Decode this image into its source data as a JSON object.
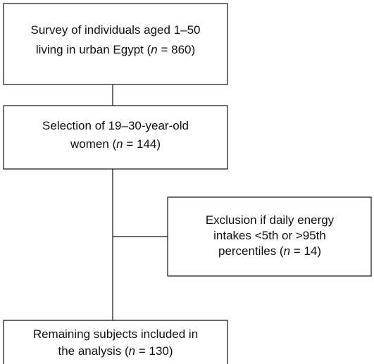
{
  "nodes": [
    {
      "lines": [
        [
          "Survey of individuals aged 1–50"
        ],
        [
          "living in urban Egypt (",
          "n",
          " = 860)"
        ]
      ]
    },
    {
      "lines": [
        [
          "Selection of 19–30-year-old"
        ],
        [
          "women (",
          "n",
          " = 144)"
        ]
      ]
    },
    {
      "lines": [
        [
          "Exclusion if daily energy"
        ],
        [
          "intakes <5th or >95th"
        ],
        [
          "percentiles (",
          "n",
          " = 14)"
        ]
      ]
    },
    {
      "lines": [
        [
          "Remaining subjects included in"
        ],
        [
          "the analysis (",
          "n",
          " = 130)"
        ]
      ]
    }
  ]
}
